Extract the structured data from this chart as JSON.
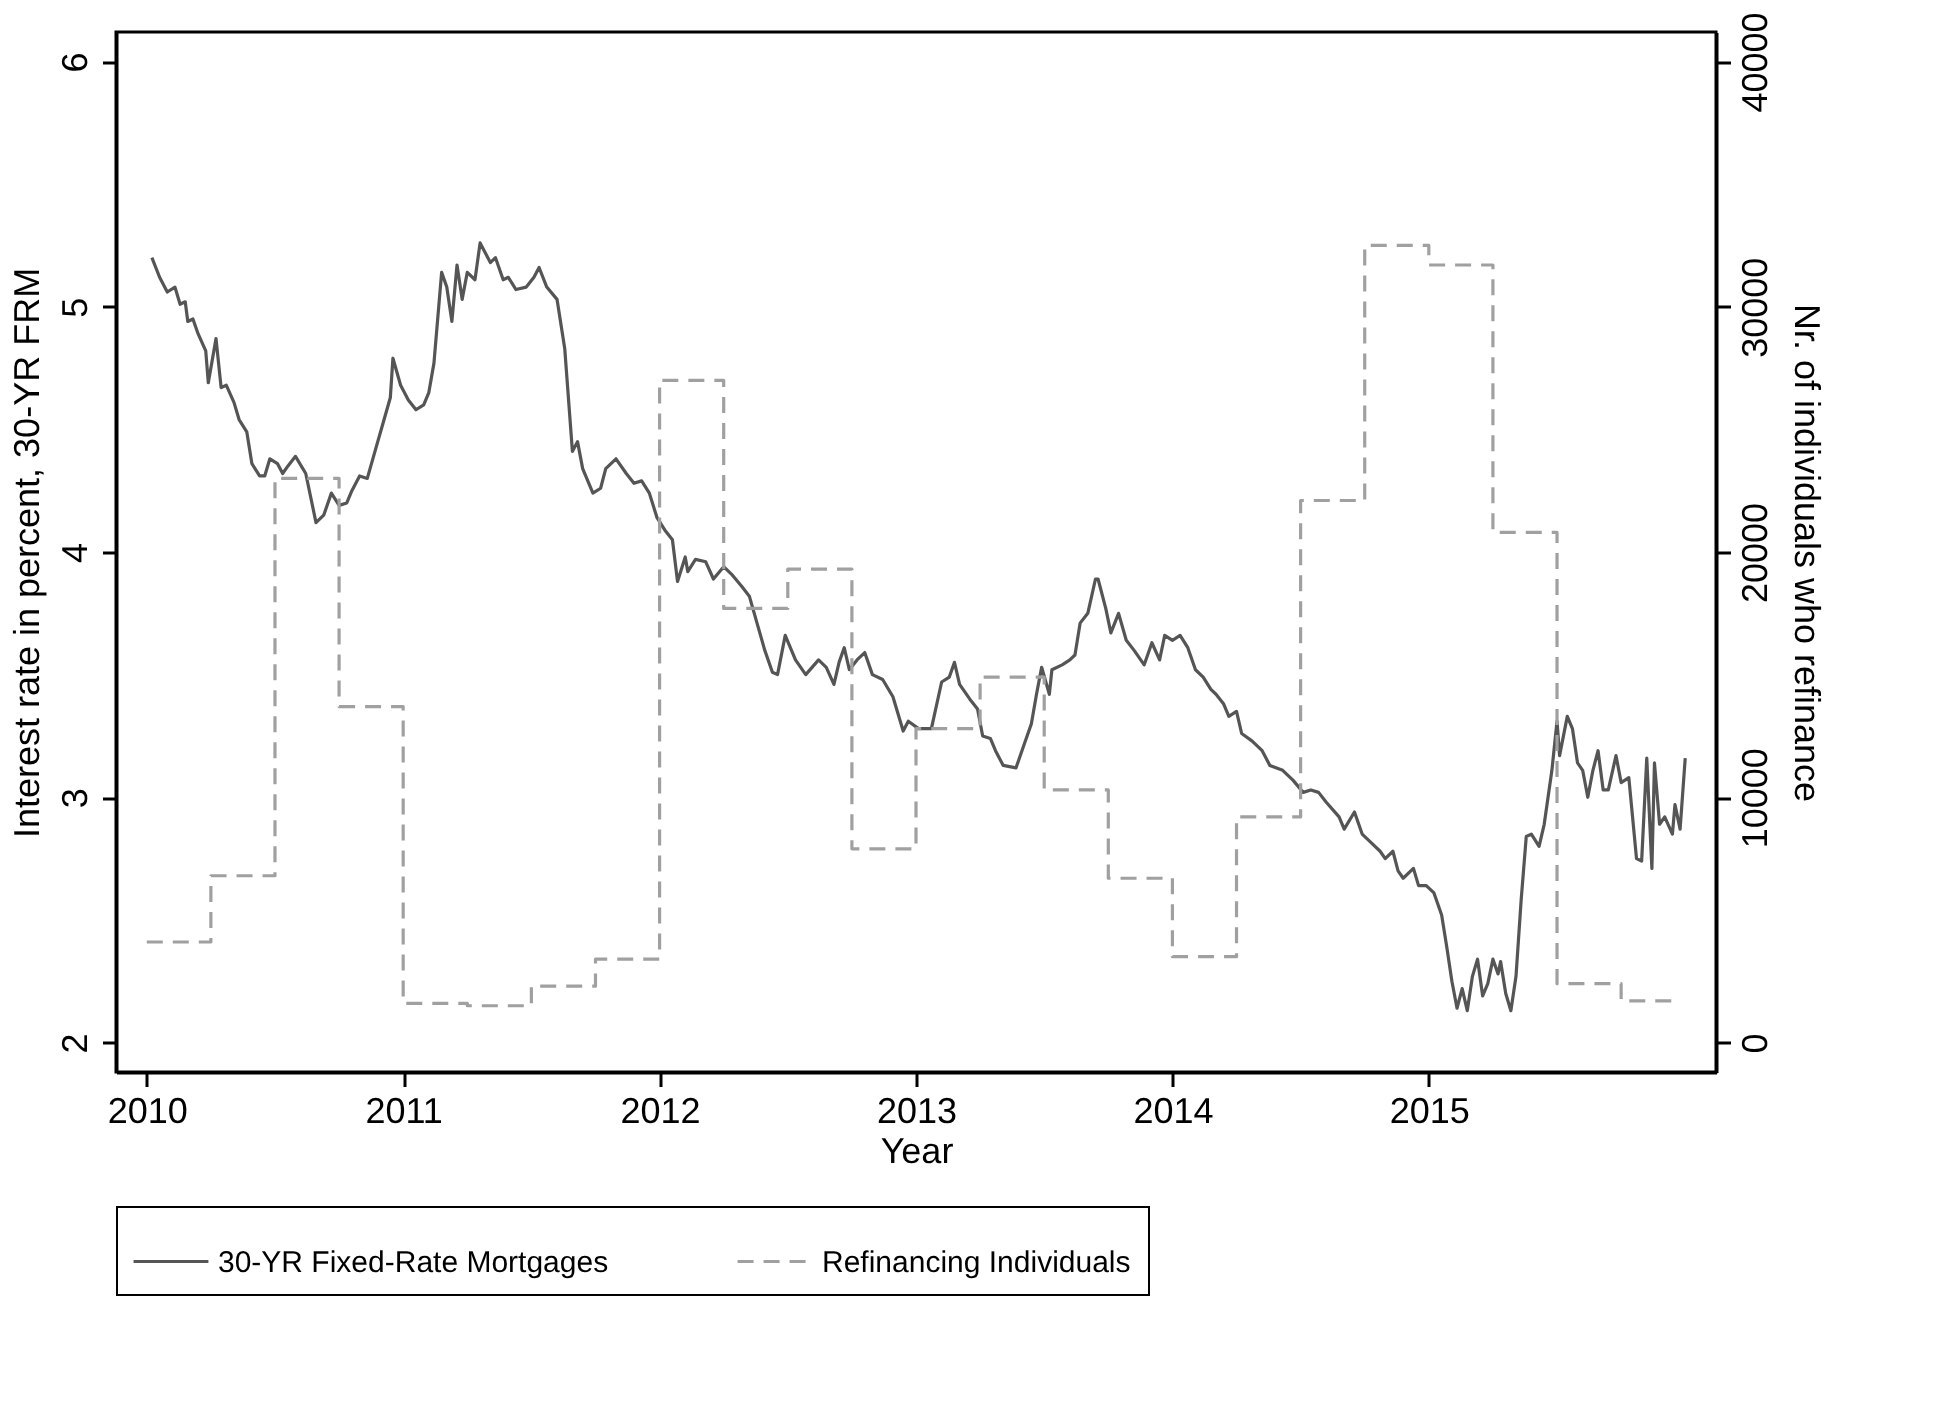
{
  "chart_data": {
    "type": "line",
    "xlabel": "Year",
    "ylabel": "Interest rate in percent, 30-YR FRM",
    "y2label": "Nr. of individuals who refinance",
    "xlim": [
      2009.88,
      2016.12
    ],
    "xticks": [
      2010,
      2011,
      2012,
      2013,
      2014,
      2015
    ],
    "ylim": [
      1.88,
      6.12
    ],
    "yticks": [
      2,
      3,
      4,
      5,
      6
    ],
    "y2lim": [
      -1200,
      41200
    ],
    "y2ticks": [
      0,
      10000,
      20000,
      30000,
      40000
    ],
    "grid": false,
    "legend": "bottom",
    "series": [
      {
        "name": "30-YR Fixed-Rate Mortgages",
        "type": "line",
        "line_style": "solid",
        "color": "#555555",
        "x": [
          2010.02,
          2010.05,
          2010.08,
          2010.11,
          2010.13,
          2010.15,
          2010.16,
          2010.18,
          2010.2,
          2010.23,
          2010.24,
          2010.27,
          2010.29,
          2010.31,
          2010.34,
          2010.36,
          2010.39,
          2010.41,
          2010.44,
          2010.46,
          2010.48,
          2010.51,
          2010.53,
          2010.55,
          2010.58,
          2010.62,
          2010.64,
          2010.66,
          2010.69,
          2010.72,
          2010.75,
          2010.78,
          2010.8,
          2010.83,
          2010.86,
          2010.89,
          2010.92,
          2010.95,
          2010.96,
          2010.99,
          2011.02,
          2011.05,
          2011.08,
          2011.1,
          2011.12,
          2011.15,
          2011.17,
          2011.19,
          2011.21,
          2011.23,
          2011.25,
          2011.28,
          2011.3,
          2011.32,
          2011.34,
          2011.36,
          2011.39,
          2011.41,
          2011.44,
          2011.48,
          2011.51,
          2011.53,
          2011.56,
          2011.6,
          2011.63,
          2011.66,
          2011.68,
          2011.7,
          2011.74,
          2011.77,
          2011.79,
          2011.83,
          2011.87,
          2011.9,
          2011.93,
          2011.96,
          2011.99,
          2012.02,
          2012.05,
          2012.07,
          2012.1,
          2012.11,
          2012.14,
          2012.18,
          2012.21,
          2012.25,
          2012.28,
          2012.32,
          2012.35,
          2012.38,
          2012.41,
          2012.44,
          2012.46,
          2012.49,
          2012.53,
          2012.57,
          2012.62,
          2012.65,
          2012.68,
          2012.7,
          2012.72,
          2012.74,
          2012.77,
          2012.8,
          2012.83,
          2012.87,
          2012.91,
          2012.95,
          2012.97,
          2013.01,
          2013.06,
          2013.1,
          2013.13,
          2013.15,
          2013.17,
          2013.21,
          2013.24,
          2013.26,
          2013.29,
          2013.31,
          2013.34,
          2013.39,
          2013.42,
          2013.45,
          2013.47,
          2013.49,
          2013.52,
          2013.53,
          2013.57,
          2013.6,
          2013.62,
          2013.64,
          2013.67,
          2013.7,
          2013.71,
          2013.74,
          2013.76,
          2013.79,
          2013.82,
          2013.85,
          2013.89,
          2013.92,
          2013.95,
          2013.97,
          2014.0,
          2014.03,
          2014.06,
          2014.09,
          2014.12,
          2014.15,
          2014.17,
          2014.2,
          2014.22,
          2014.25,
          2014.27,
          2014.31,
          2014.35,
          2014.38,
          2014.43,
          2014.47,
          2014.51,
          2014.54,
          2014.57,
          2014.6,
          2014.65,
          2014.67,
          2014.71,
          2014.74,
          2014.78,
          2014.81,
          2014.83,
          2014.86,
          2014.88,
          2014.9,
          2014.94,
          2014.96,
          2014.99,
          2015.02,
          2015.05,
          2015.07,
          2015.09,
          2015.11,
          2015.13,
          2015.15,
          2015.17,
          2015.19,
          2015.21,
          2015.23,
          2015.25,
          2015.27,
          2015.28,
          2015.3,
          2015.32,
          2015.34,
          2015.36,
          2015.38,
          2015.4,
          2015.43,
          2015.45,
          2015.48,
          2015.5,
          2015.51,
          2015.54,
          2015.56,
          2015.58,
          2015.6,
          2015.62,
          2015.64,
          2015.66,
          2015.68,
          2015.7,
          2015.73,
          2015.75,
          2015.78,
          2015.81,
          2015.83,
          2015.85,
          2015.87,
          2015.88,
          2015.9,
          2015.92,
          2015.95,
          2015.96,
          2015.98,
          2016.0
        ],
        "values": [
          5.2,
          5.12,
          5.06,
          5.08,
          5.01,
          5.02,
          4.94,
          4.95,
          4.89,
          4.82,
          4.69,
          4.87,
          4.67,
          4.68,
          4.61,
          4.54,
          4.49,
          4.36,
          4.31,
          4.31,
          4.38,
          4.36,
          4.32,
          4.35,
          4.39,
          4.32,
          4.22,
          4.12,
          4.15,
          4.24,
          4.19,
          4.2,
          4.25,
          4.31,
          4.3,
          4.41,
          4.52,
          4.63,
          4.79,
          4.68,
          4.62,
          4.58,
          4.6,
          4.65,
          4.77,
          5.14,
          5.08,
          4.94,
          5.17,
          5.03,
          5.14,
          5.11,
          5.26,
          5.22,
          5.18,
          5.2,
          5.11,
          5.12,
          5.07,
          5.08,
          5.12,
          5.16,
          5.08,
          5.03,
          4.83,
          4.41,
          4.45,
          4.34,
          4.24,
          4.26,
          4.34,
          4.38,
          4.32,
          4.28,
          4.29,
          4.24,
          4.14,
          4.09,
          4.05,
          3.88,
          3.98,
          3.92,
          3.97,
          3.96,
          3.89,
          3.94,
          3.91,
          3.86,
          3.82,
          3.71,
          3.6,
          3.51,
          3.5,
          3.66,
          3.56,
          3.5,
          3.56,
          3.53,
          3.46,
          3.55,
          3.61,
          3.52,
          3.56,
          3.59,
          3.5,
          3.48,
          3.41,
          3.27,
          3.31,
          3.28,
          3.28,
          3.47,
          3.49,
          3.55,
          3.46,
          3.4,
          3.36,
          3.25,
          3.24,
          3.19,
          3.13,
          3.12,
          3.21,
          3.3,
          3.42,
          3.53,
          3.42,
          3.52,
          3.54,
          3.56,
          3.58,
          3.71,
          3.75,
          3.89,
          3.89,
          3.77,
          3.67,
          3.75,
          3.64,
          3.6,
          3.54,
          3.63,
          3.56,
          3.66,
          3.64,
          3.66,
          3.61,
          3.52,
          3.49,
          3.44,
          3.42,
          3.38,
          3.33,
          3.35,
          3.26,
          3.23,
          3.19,
          3.13,
          3.11,
          3.07,
          3.02,
          3.03,
          3.02,
          2.98,
          2.92,
          2.87,
          2.94,
          2.85,
          2.81,
          2.78,
          2.75,
          2.78,
          2.7,
          2.67,
          2.71,
          2.64,
          2.64,
          2.61,
          2.52,
          2.39,
          2.25,
          2.14,
          2.22,
          2.13,
          2.27,
          2.34,
          2.19,
          2.24,
          2.34,
          2.28,
          2.33,
          2.2,
          2.13,
          2.27,
          2.58,
          2.84,
          2.85,
          2.8,
          2.89,
          3.11,
          3.31,
          3.17,
          3.33,
          3.28,
          3.14,
          3.11,
          3.0,
          3.11,
          3.19,
          3.03,
          3.03,
          3.17,
          3.06,
          3.08,
          2.75,
          2.74,
          3.16,
          2.71,
          3.14,
          2.89,
          2.92,
          2.85,
          2.97,
          2.87,
          3.16
        ]
      },
      {
        "name": "Refinancing Individuals",
        "type": "step",
        "axis": "y2",
        "line_style": "dashed",
        "color": "#a0a0a0",
        "x": [
          2010.0,
          2010.25,
          2010.5,
          2010.75,
          2011.0,
          2011.25,
          2011.5,
          2011.75,
          2012.0,
          2012.25,
          2012.5,
          2012.75,
          2013.0,
          2013.25,
          2013.5,
          2013.75,
          2014.0,
          2014.25,
          2014.5,
          2014.75,
          2015.0,
          2015.25,
          2015.5,
          2015.75,
          2015.96
        ],
        "values": [
          4100,
          6800,
          23000,
          13700,
          1600,
          1500,
          2300,
          3400,
          27000,
          17700,
          19300,
          7900,
          12800,
          14900,
          10300,
          6700,
          3500,
          9200,
          22100,
          32500,
          31700,
          20800,
          2400,
          1700,
          1700
        ]
      }
    ]
  }
}
